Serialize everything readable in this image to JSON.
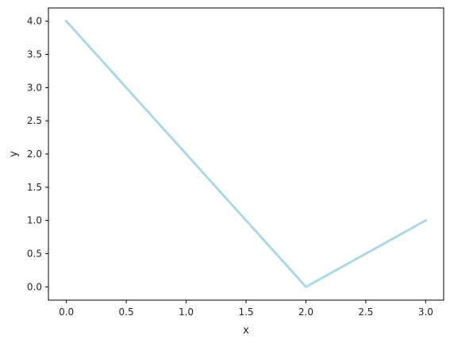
{
  "chart_data": {
    "type": "line",
    "title": "",
    "xlabel": "x",
    "ylabel": "y",
    "xlim": [
      -0.15,
      3.15
    ],
    "ylim": [
      -0.2,
      4.2
    ],
    "xticks": [
      0.0,
      0.5,
      1.0,
      1.5,
      2.0,
      2.5,
      3.0
    ],
    "xtick_labels": [
      "0.0",
      "0.5",
      "1.0",
      "1.5",
      "2.0",
      "2.5",
      "3.0"
    ],
    "yticks": [
      0.0,
      0.5,
      1.0,
      1.5,
      2.0,
      2.5,
      3.0,
      3.5,
      4.0
    ],
    "ytick_labels": [
      "0.0",
      "0.5",
      "1.0",
      "1.5",
      "2.0",
      "2.5",
      "3.0",
      "3.5",
      "4.0"
    ],
    "grid": false,
    "legend": "none",
    "series": [
      {
        "color": "#add8e6",
        "x": [
          0,
          2,
          3
        ],
        "y": [
          4,
          0,
          1
        ]
      }
    ]
  }
}
